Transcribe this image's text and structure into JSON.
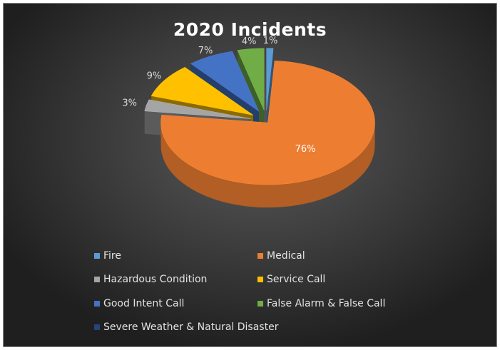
{
  "chart_data": {
    "type": "pie",
    "title": "2020 Incidents",
    "categories": [
      "Fire",
      "Medical",
      "Hazardous Condition",
      "Service Call",
      "Good Intent Call",
      "False Alarm & False Call",
      "Severe Weather & Natural Disaster"
    ],
    "values": [
      1,
      76,
      3,
      9,
      7,
      4,
      0
    ],
    "data_labels": [
      "1%",
      "76%",
      "3%",
      "9%",
      "7%",
      "4%",
      ""
    ],
    "colors": [
      "#5b9bd5",
      "#ed7d31",
      "#a5a5a5",
      "#ffc000",
      "#4472c4",
      "#70ad47",
      "#264478"
    ],
    "style": "3d-exploded",
    "legend_position": "bottom"
  }
}
